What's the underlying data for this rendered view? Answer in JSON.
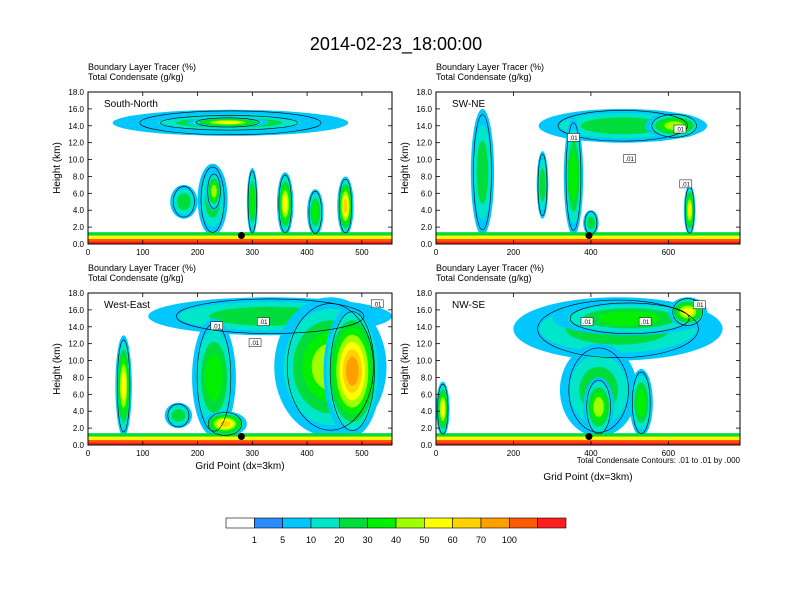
{
  "title": "2014-02-23_18:00:00",
  "colors": {
    "background": "#ffffff",
    "axis": "#000000",
    "contour": "#000000"
  },
  "chart_data": {
    "type": "heatmap",
    "title": "2014-02-23_18:00:00",
    "panels": [
      {
        "id": "south-north",
        "label": "South-North",
        "subtitle1": "Boundary Layer Tracer   (%)",
        "subtitle2": "Total Condensate   (g/kg)",
        "ylabel": "Height (km)",
        "xlabel": "",
        "xlim": [
          0,
          555
        ],
        "ylim": [
          0,
          18
        ],
        "x_ticks": [
          0,
          100,
          200,
          300,
          400,
          500
        ],
        "x_tick_labels": [
          "0",
          "100",
          "200",
          "300",
          "400",
          "500"
        ],
        "y_ticks": [
          0,
          2,
          4,
          6,
          8,
          10,
          12,
          14,
          16,
          18
        ],
        "y_tick_labels": [
          "0.0",
          "2.0",
          "4.0",
          "6.0",
          "8.0",
          "10.0",
          "12.0",
          "14.0",
          "16.0",
          "18.0"
        ],
        "marker": {
          "x": 280,
          "y": 1.0
        },
        "contour_labels": [],
        "features": [
          {
            "x0": 45,
            "x1": 475,
            "y0": 12.8,
            "y1": 15.9,
            "level": 2
          },
          {
            "x0": 95,
            "x1": 420,
            "y0": 13.4,
            "y1": 15.3,
            "level": 4
          },
          {
            "x0": 180,
            "x1": 330,
            "y0": 13.8,
            "y1": 15.0,
            "level": 6
          },
          {
            "x0": 200,
            "x1": 255,
            "y0": 1.0,
            "y1": 9.5,
            "level": 3
          },
          {
            "x0": 215,
            "x1": 245,
            "y0": 4.0,
            "y1": 8.5,
            "level": 5
          },
          {
            "x0": 290,
            "x1": 310,
            "y0": 1.0,
            "y1": 9.0,
            "level": 4
          },
          {
            "x0": 345,
            "x1": 375,
            "y0": 1.0,
            "y1": 8.5,
            "level": 6
          },
          {
            "x0": 455,
            "x1": 485,
            "y0": 1.0,
            "y1": 8.0,
            "level": 7
          },
          {
            "x0": 400,
            "x1": 430,
            "y0": 1.0,
            "y1": 6.5,
            "level": 4
          },
          {
            "x0": 150,
            "x1": 200,
            "y0": 3.0,
            "y1": 7.0,
            "level": 3
          }
        ]
      },
      {
        "id": "sw-ne",
        "label": "SW-NE",
        "subtitle1": "Boundary Layer Tracer   (%)",
        "subtitle2": "Total Condensate   (g/kg)",
        "ylabel": "Height (km)",
        "xlabel": "",
        "xlim": [
          0,
          785
        ],
        "ylim": [
          0,
          18
        ],
        "x_ticks": [
          0,
          200,
          400,
          600
        ],
        "x_tick_labels": [
          "0",
          "200",
          "400",
          "600"
        ],
        "y_ticks": [
          0,
          2,
          4,
          6,
          8,
          10,
          12,
          14,
          16,
          18
        ],
        "y_tick_labels": [
          "0.0",
          "2.0",
          "4.0",
          "6.0",
          "8.0",
          "10.0",
          "12.0",
          "14.0",
          "16.0",
          "18.0"
        ],
        "marker": {
          "x": 395,
          "y": 1.0
        },
        "contour_labels": [
          {
            "x": 355,
            "y": 12.5,
            "text": ".01"
          },
          {
            "x": 500,
            "y": 10.0,
            "text": ".01"
          },
          {
            "x": 630,
            "y": 13.5,
            "text": ".01"
          },
          {
            "x": 645,
            "y": 7.0,
            "text": ".01"
          }
        ],
        "features": [
          {
            "x0": 90,
            "x1": 150,
            "y0": 1.0,
            "y1": 16.0,
            "level": 3
          },
          {
            "x0": 265,
            "x1": 700,
            "y0": 12.0,
            "y1": 16.0,
            "level": 3
          },
          {
            "x0": 330,
            "x1": 380,
            "y0": 1.0,
            "y1": 15.0,
            "level": 4
          },
          {
            "x0": 540,
            "x1": 690,
            "y0": 12.5,
            "y1": 15.5,
            "level": 5
          },
          {
            "x0": 260,
            "x1": 290,
            "y0": 3.0,
            "y1": 11.0,
            "level": 3
          },
          {
            "x0": 640,
            "x1": 670,
            "y0": 1.0,
            "y1": 7.0,
            "level": 6
          },
          {
            "x0": 380,
            "x1": 420,
            "y0": 1.0,
            "y1": 4.0,
            "level": 3
          }
        ]
      },
      {
        "id": "west-east",
        "label": "West-East",
        "subtitle1": "Boundary Layer Tracer   (%)",
        "subtitle2": "Total Condensate   (g/kg)",
        "ylabel": "Height (km)",
        "xlabel": "Grid Point (dx=3km)",
        "xlim": [
          0,
          555
        ],
        "ylim": [
          0,
          18
        ],
        "x_ticks": [
          0,
          100,
          200,
          300,
          400,
          500
        ],
        "x_tick_labels": [
          "0",
          "100",
          "200",
          "300",
          "400",
          "500"
        ],
        "y_ticks": [
          0,
          2,
          4,
          6,
          8,
          10,
          12,
          14,
          16,
          18
        ],
        "y_tick_labels": [
          "0.0",
          "2.0",
          "4.0",
          "6.0",
          "8.0",
          "10.0",
          "12.0",
          "14.0",
          "16.0",
          "18.0"
        ],
        "marker": {
          "x": 280,
          "y": 1.0
        },
        "contour_labels": [
          {
            "x": 235,
            "y": 14.0,
            "text": ".01"
          },
          {
            "x": 320,
            "y": 14.5,
            "text": ".01"
          },
          {
            "x": 305,
            "y": 12.0,
            "text": ".01"
          },
          {
            "x": 528,
            "y": 16.6,
            "text": ".01"
          }
        ],
        "features": [
          {
            "x0": 110,
            "x1": 555,
            "y0": 13.0,
            "y1": 17.5,
            "level": 3
          },
          {
            "x0": 340,
            "x1": 545,
            "y0": 1.0,
            "y1": 17.5,
            "level": 5
          },
          {
            "x0": 430,
            "x1": 535,
            "y0": 1.0,
            "y1": 16.5,
            "level": 8
          },
          {
            "x0": 50,
            "x1": 80,
            "y0": 1.0,
            "y1": 13.0,
            "level": 6
          },
          {
            "x0": 190,
            "x1": 270,
            "y0": 1.0,
            "y1": 15.0,
            "level": 4
          },
          {
            "x0": 210,
            "x1": 290,
            "y0": 1.0,
            "y1": 4.0,
            "level": 7
          },
          {
            "x0": 140,
            "x1": 190,
            "y0": 2.0,
            "y1": 5.0,
            "level": 3
          }
        ]
      },
      {
        "id": "nw-se",
        "label": "NW-SE",
        "subtitle1": "Boundary Layer Tracer   (%)",
        "subtitle2": "Total Condensate   (g/kg)",
        "ylabel": "Height (km)",
        "xlabel": "Grid Point (dx=3km)",
        "xlim": [
          0,
          785
        ],
        "ylim": [
          0,
          18
        ],
        "x_ticks": [
          0,
          200,
          400,
          600
        ],
        "x_tick_labels": [
          "0",
          "200",
          "400",
          "600"
        ],
        "y_ticks": [
          0,
          2,
          4,
          6,
          8,
          10,
          12,
          14,
          16,
          18
        ],
        "y_tick_labels": [
          "0.0",
          "2.0",
          "4.0",
          "6.0",
          "8.0",
          "10.0",
          "12.0",
          "14.0",
          "16.0",
          "18.0"
        ],
        "marker": {
          "x": 395,
          "y": 1.0
        },
        "contour_labels": [
          {
            "x": 390,
            "y": 14.5,
            "text": ".01"
          },
          {
            "x": 540,
            "y": 14.5,
            "text": ".01"
          },
          {
            "x": 680,
            "y": 16.5,
            "text": ".01"
          }
        ],
        "features": [
          {
            "x0": 200,
            "x1": 740,
            "y0": 10.0,
            "y1": 17.5,
            "level": 3
          },
          {
            "x0": 300,
            "x1": 700,
            "y0": 13.0,
            "y1": 17.0,
            "level": 4
          },
          {
            "x0": 600,
            "x1": 700,
            "y0": 14.0,
            "y1": 17.5,
            "level": 6
          },
          {
            "x0": 320,
            "x1": 520,
            "y0": 1.0,
            "y1": 12.0,
            "level": 3
          },
          {
            "x0": 380,
            "x1": 460,
            "y0": 1.0,
            "y1": 8.0,
            "level": 5
          },
          {
            "x0": 500,
            "x1": 560,
            "y0": 1.0,
            "y1": 9.0,
            "level": 4
          },
          {
            "x0": 0,
            "x1": 35,
            "y0": 1.0,
            "y1": 7.5,
            "level": 6
          }
        ]
      }
    ],
    "colorbar": {
      "levels": [
        1,
        5,
        10,
        20,
        30,
        40,
        50,
        60,
        70,
        100
      ],
      "labels": [
        "1",
        "5",
        "10",
        "20",
        "30",
        "40",
        "50",
        "60",
        "70",
        "100"
      ],
      "colors": [
        "#ffffff",
        "#2a8cff",
        "#00c8ff",
        "#00e6c8",
        "#00dc3c",
        "#00f000",
        "#a0ff00",
        "#ffff00",
        "#ffd200",
        "#ffa000",
        "#ff5a00",
        "#ff1e1e"
      ]
    },
    "footnote": "Total Condensate Contours: .01 to .01 by .000"
  }
}
